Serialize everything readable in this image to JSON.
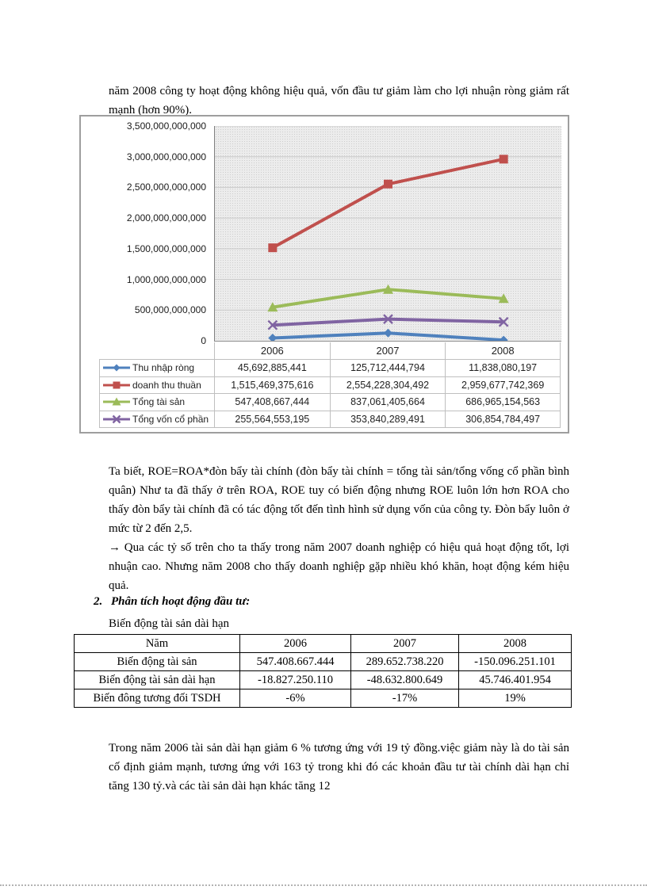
{
  "page": {
    "paragraph1": "năm 2008 công ty hoạt động không hiệu quả, vốn đầu tư giảm làm cho lợi nhuận ròng giảm rất mạnh (hơn 90%).",
    "paragraph2": "Ta biết, ROE=ROA*đòn bẩy tài chính (đòn bẩy tài chính = tổng tài sản/tổng vống cổ phần bình quân) Như ta đã thấy ở trên ROA,  ROE tuy có biến động nhưng ROE luôn lớn hơn ROA cho thấy đòn bẩy tài chính đã có tác động tốt đến tình hình sử dụng vốn của công ty. Đòn bẩy luôn ở mức từ 2 đến 2,5.",
    "paragraph3": "→ Qua các tỷ số trên cho ta thấy trong năm 2007 doanh nghiệp có hiệu quả hoạt động tốt, lợi nhuận  cao.  Nhưng năm 2008 cho thấy doanh nghiệp gặp nhiều khó khăn, hoạt động kém hiệu quả.",
    "heading_number": "2.",
    "heading_text": "Phân tích hoạt động đầu tư:",
    "table_caption": "Biến động tài sản dài hạn",
    "paragraph4": "Trong năm 2006 tài sản dài hạn giảm 6 % tương ứng với 19 tỷ đồng.việc giảm này là do tài sản cố định giảm mạnh, tương ứng với 163 tỷ trong khi đó các khoản đầu tư tài chính dài hạn chỉ tăng 130 tỷ.và các tài sản dài hạn khác tăng 12"
  },
  "chart_data": {
    "type": "line",
    "categories": [
      "2006",
      "2007",
      "2008"
    ],
    "series": [
      {
        "name": "Thu nhập ròng",
        "marker": "diamond",
        "color": "#4F81BD",
        "values": [
          45692885441,
          125712444794,
          11838080197
        ],
        "labels": [
          "45,692,885,441",
          "125,712,444,794",
          "11,838,080,197"
        ]
      },
      {
        "name": "doanh thu thuần",
        "marker": "square",
        "color": "#C0504D",
        "values": [
          1515469375616,
          2554228304492,
          2959677742369
        ],
        "labels": [
          "1,515,469,375,616",
          "2,554,228,304,492",
          "2,959,677,742,369"
        ]
      },
      {
        "name": "Tổng tài sản",
        "marker": "triangle",
        "color": "#9BBB59",
        "values": [
          547408667444,
          837061405664,
          686965154563
        ],
        "labels": [
          "547,408,667,444",
          "837,061,405,664",
          "686,965,154,563"
        ]
      },
      {
        "name": "Tổng vốn cổ phần",
        "marker": "x",
        "color": "#8064A2",
        "values": [
          255564553195,
          353840289491,
          306854784497
        ],
        "labels": [
          "255,564,553,195",
          "353,840,289,491",
          "306,854,784,497"
        ]
      }
    ],
    "title": "",
    "xlabel": "",
    "ylabel": "",
    "ylim": [
      0,
      3500000000000
    ],
    "ytick_step": 500000000000,
    "ytick_labels": [
      "3,500,000,000,000",
      "3,000,000,000,000",
      "2,500,000,000,000",
      "2,000,000,000,000",
      "1,500,000,000,000",
      "1,000,000,000,000",
      "500,000,000,000",
      "0"
    ],
    "grid": true,
    "legend_position": "data-table-left"
  },
  "doc_table": {
    "header": [
      "Năm",
      "2006",
      "2007",
      "2008"
    ],
    "rows": [
      [
        "Biến động tài sản",
        "547.408.667.444",
        "289.652.738.220",
        "-150.096.251.101"
      ],
      [
        "Biến động tài sản dài hạn",
        "-18.827.250.110",
        "-48.632.800.649",
        "45.746.401.954"
      ],
      [
        "Biến đông tương đối TSDH",
        "-6%",
        "-17%",
        "19%"
      ]
    ]
  }
}
